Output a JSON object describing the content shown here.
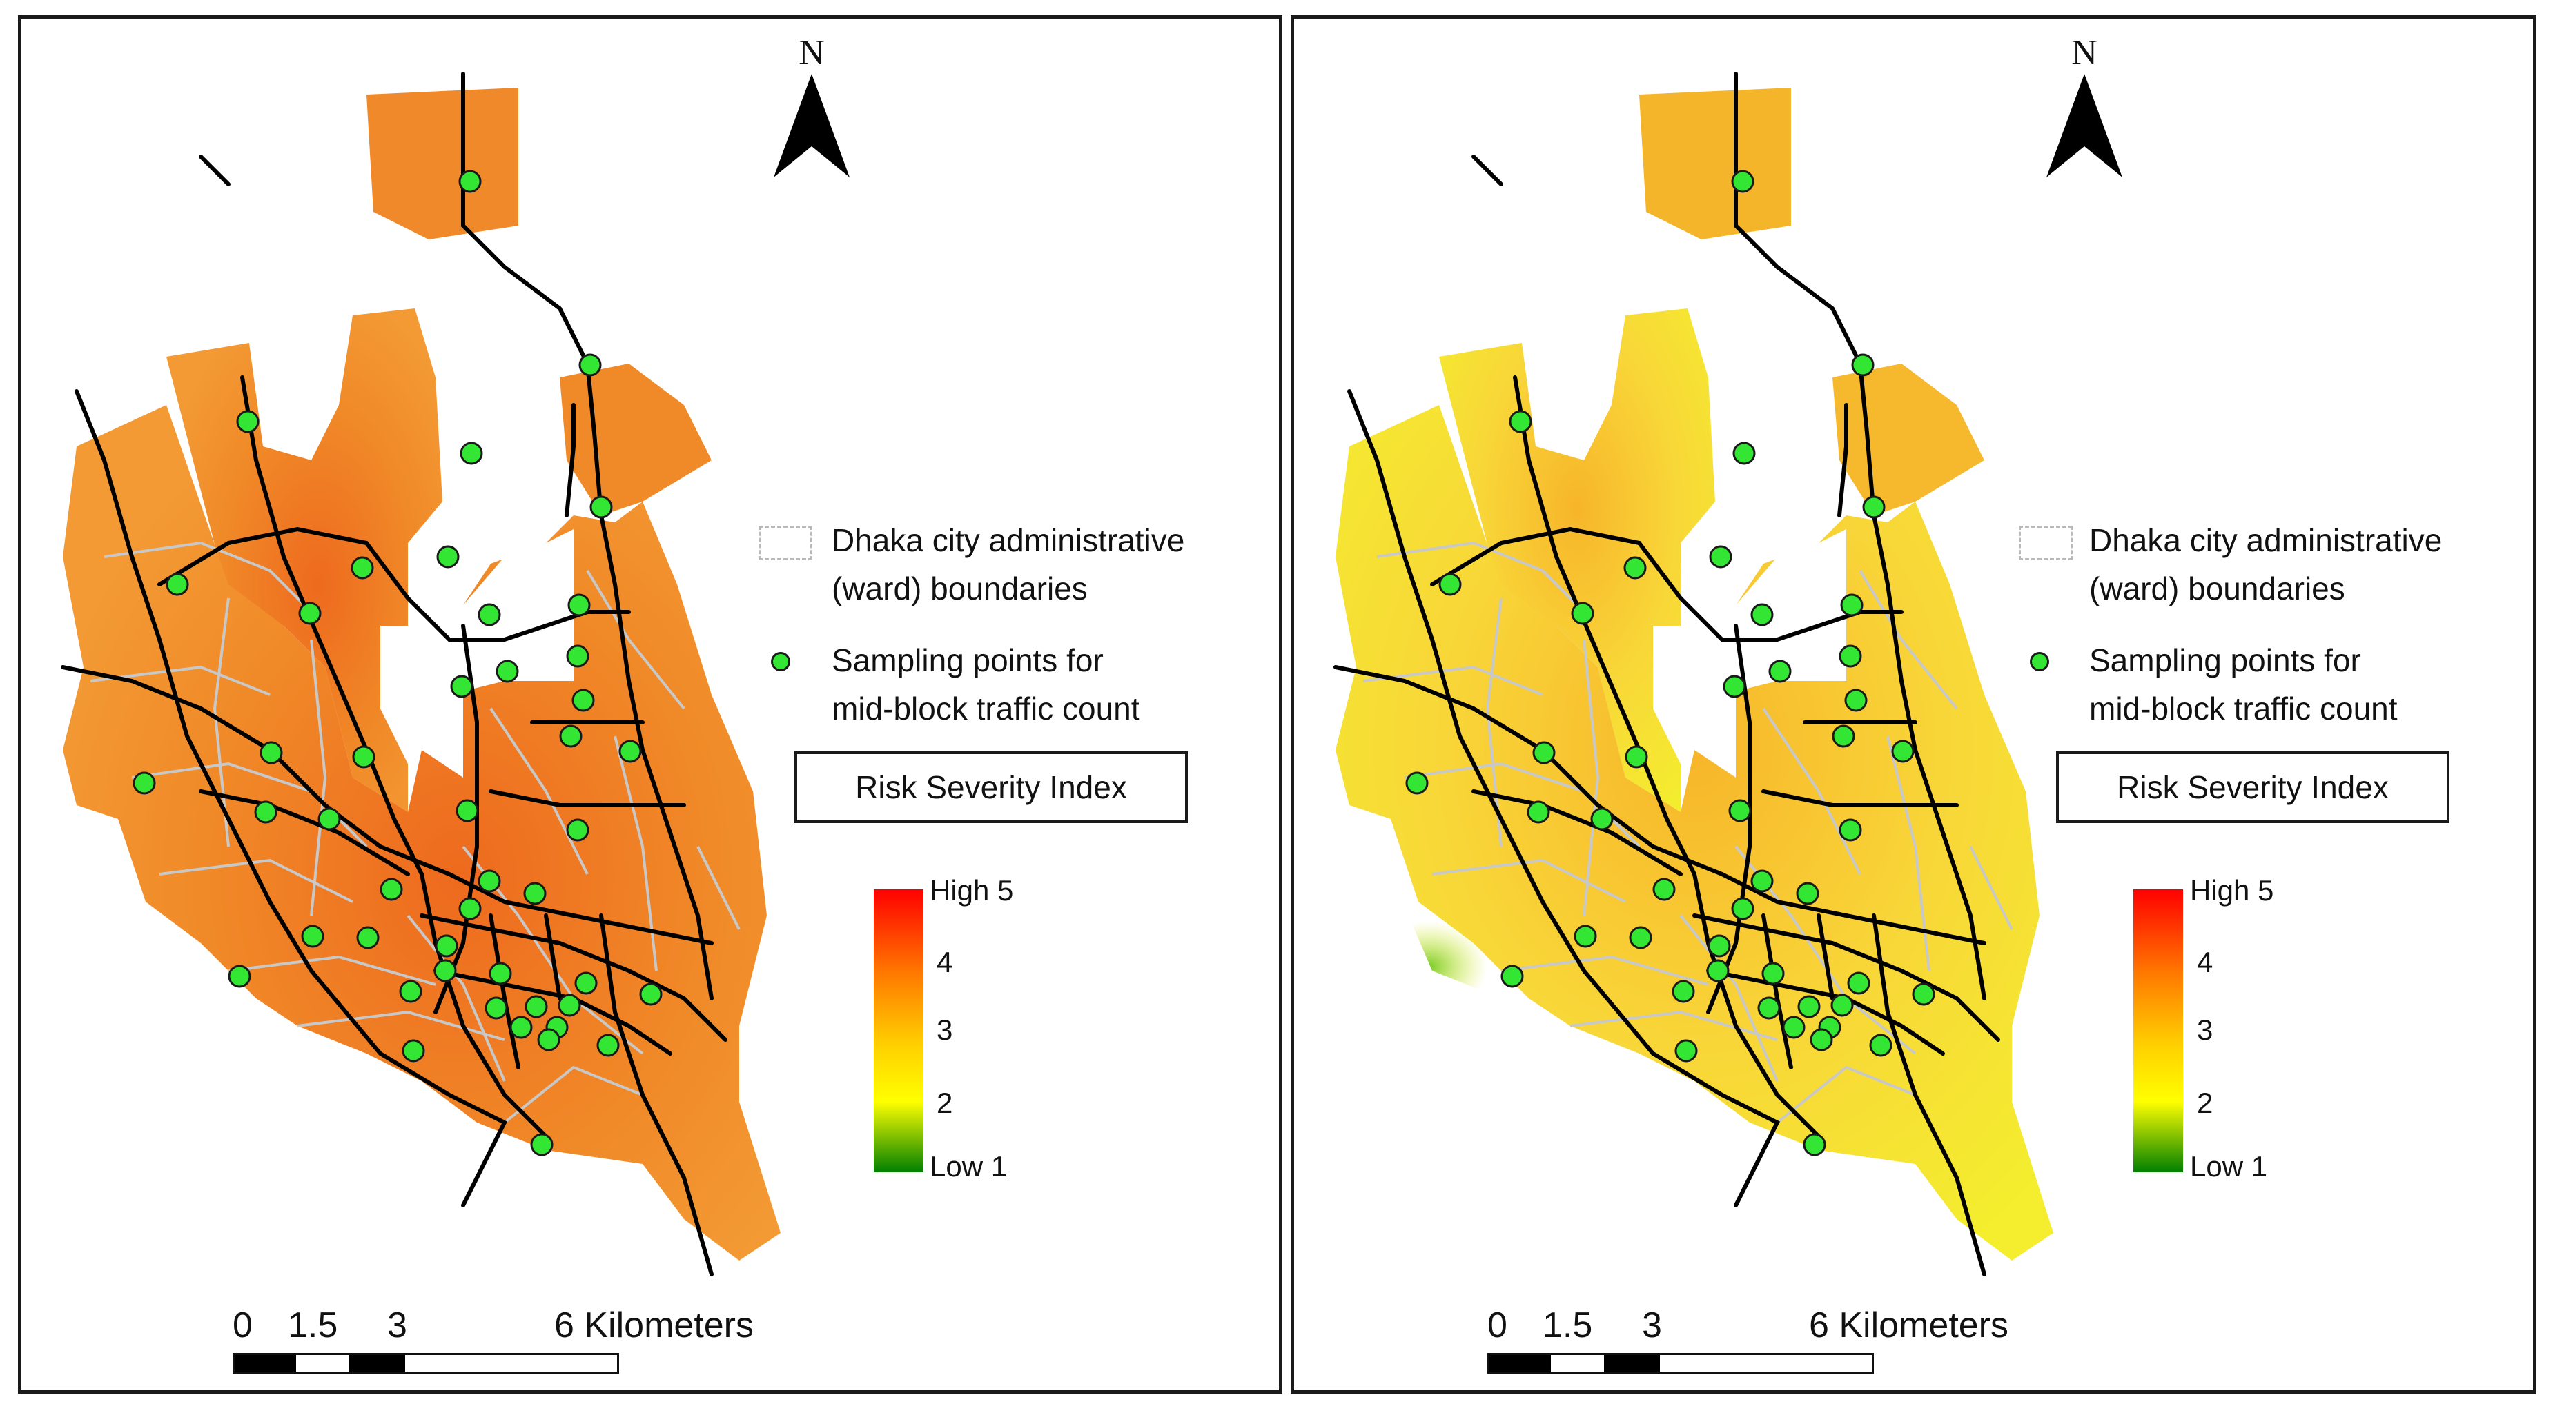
{
  "colors": {
    "ramp_high": "#ff0000",
    "ramp_mid_high": "#ff7a00",
    "ramp_mid": "#ffd000",
    "ramp_mid_low": "#ffff00",
    "ramp_low": "#008000",
    "ward_boundary": "#bdbdbd",
    "road": "#000000",
    "sampling_point": "#33e633",
    "left_map_fill": "#f08a28",
    "right_map_fill": "#f5c832"
  },
  "north_label": "N",
  "legend": {
    "boundary_line1": "Dhaka city administrative",
    "boundary_line2": "(ward) boundaries",
    "points_line1": "Sampling points for",
    "points_line2": "mid-block traffic count",
    "index_title": "Risk Severity Index",
    "high_label": "High 5",
    "low_label": "Low 1",
    "ticks": [
      "4",
      "3",
      "2"
    ]
  },
  "scale_bar": {
    "labels": [
      "0",
      "1.5",
      "3"
    ],
    "end_label": "6 Kilometers"
  },
  "map_values": {
    "left_panel_overall_index": 3.5,
    "right_panel_overall_index": 2.5
  }
}
